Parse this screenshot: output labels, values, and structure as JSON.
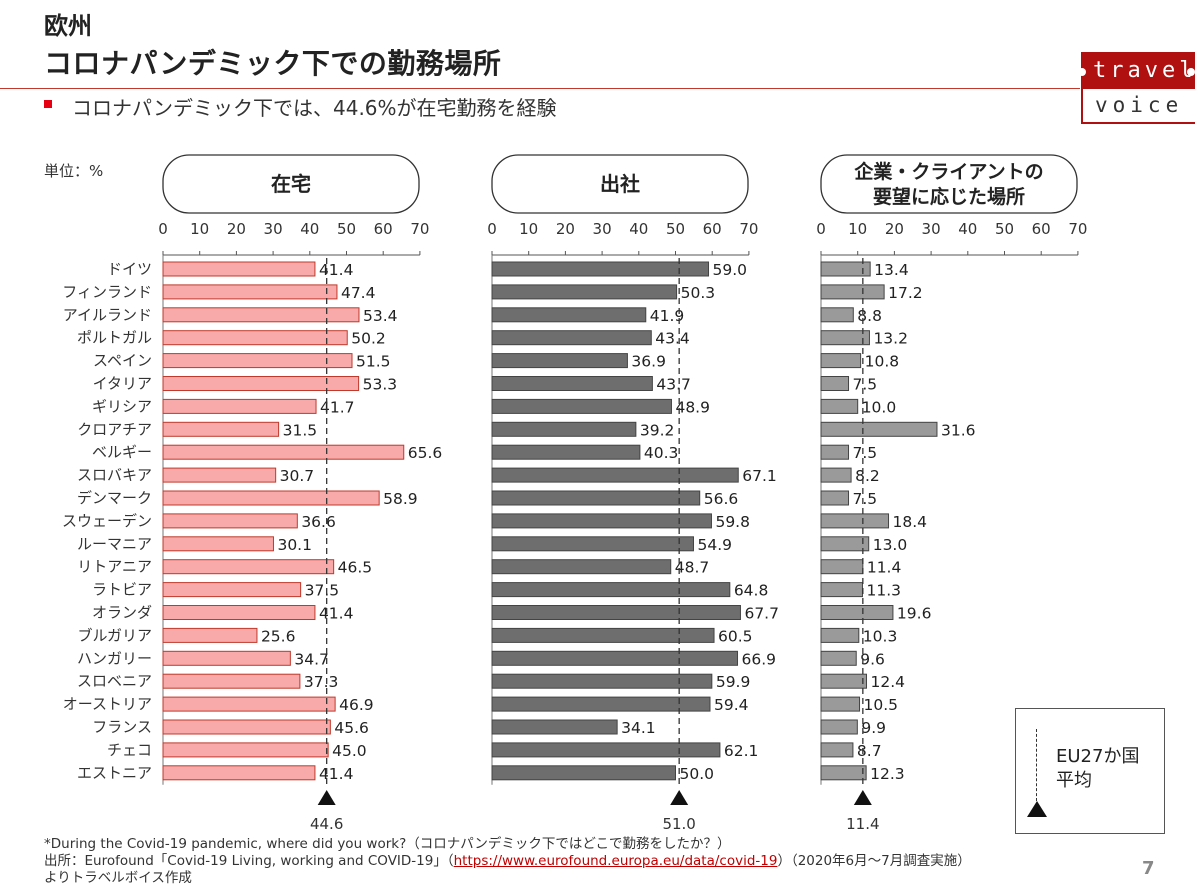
{
  "header": {
    "region": "欧州",
    "title": "コロナパンデミック下での勤務場所",
    "subtitle": "コロナパンデミック下では、44.6%が在宅勤務を経験"
  },
  "logo": {
    "line1": "travel",
    "line2": "voice"
  },
  "unit_label": "単位：%",
  "legend": {
    "label_line1": "EU27か国",
    "label_line2": "平均"
  },
  "colors": {
    "home": "#f8a9a9",
    "office": "#6e6e6e",
    "client": "#9a9a9a",
    "accent": "#e60012"
  },
  "chart_data": {
    "type": "bar",
    "orientation": "horizontal",
    "xlim": [
      0,
      70
    ],
    "ticks": [
      0,
      10,
      20,
      30,
      40,
      50,
      60,
      70
    ],
    "categories": [
      "ドイツ",
      "フィンランド",
      "アイルランド",
      "ポルトガル",
      "スペイン",
      "イタリア",
      "ギリシア",
      "クロアチア",
      "ベルギー",
      "スロバキア",
      "デンマーク",
      "スウェーデン",
      "ルーマニア",
      "リトアニア",
      "ラトビア",
      "オランダ",
      "ブルガリア",
      "ハンガリー",
      "スロベニア",
      "オーストリア",
      "フランス",
      "チェコ",
      "エストニア"
    ],
    "series": [
      {
        "name": "在宅",
        "average": 44.6,
        "average_label": "44.6",
        "values": [
          41.4,
          47.4,
          53.4,
          50.2,
          51.5,
          53.3,
          41.7,
          31.5,
          65.6,
          30.7,
          58.9,
          36.6,
          30.1,
          46.5,
          37.5,
          41.4,
          25.6,
          34.7,
          37.3,
          46.9,
          45.6,
          45.0,
          41.4
        ],
        "labels": [
          "41.4",
          "47.4",
          "53.4",
          "50.2",
          "51.5",
          "53.3",
          "41.7",
          "31.5",
          "65.6",
          "30.7",
          "58.9",
          "36.6",
          "30.1",
          "46.5",
          "37.5",
          "41.4",
          "25.6",
          "34.7",
          "37.3",
          "46.9",
          "45.6",
          "45.0",
          "41.4"
        ]
      },
      {
        "name": "出社",
        "average": 51.0,
        "average_label": "51.0",
        "values": [
          59.0,
          50.3,
          41.9,
          43.4,
          36.9,
          43.7,
          48.9,
          39.2,
          40.3,
          67.1,
          56.6,
          59.8,
          54.9,
          48.7,
          64.8,
          67.7,
          60.5,
          66.9,
          59.9,
          59.4,
          34.1,
          62.1,
          50.0
        ],
        "labels": [
          "59.0",
          "50.3",
          "41.9",
          "43.4",
          "36.9",
          "43.7",
          "48.9",
          "39.2",
          "40.3",
          "67.1",
          "56.6",
          "59.8",
          "54.9",
          "48.7",
          "64.8",
          "67.7",
          "60.5",
          "66.9",
          "59.9",
          "59.4",
          "34.1",
          "62.1",
          "50.0"
        ]
      },
      {
        "name_line1": "企業・クライアントの",
        "name_line2": "要望に応じた場所",
        "average": 11.4,
        "average_label": "11.4",
        "values": [
          13.4,
          17.2,
          8.8,
          13.2,
          10.8,
          7.5,
          10.0,
          31.6,
          7.5,
          8.2,
          7.5,
          18.4,
          13.0,
          11.4,
          11.3,
          19.6,
          10.3,
          9.6,
          12.4,
          10.5,
          9.9,
          8.7,
          12.3
        ],
        "labels": [
          "13.4",
          "17.2",
          "8.8",
          "13.2",
          "10.8",
          "7.5",
          "10.0",
          "31.6",
          "7.5",
          "8.2",
          "7.5",
          "18.4",
          "13.0",
          "11.4",
          "11.3",
          "19.6",
          "10.3",
          "9.6",
          "12.4",
          "10.5",
          "9.9",
          "8.7",
          "12.3"
        ]
      }
    ]
  },
  "footer": {
    "line1": "*During the Covid-19 pandemic, where did you work?（コロナパンデミック下ではどこで勤務をしたか？）",
    "line2_prefix": "出所：Eurofound「Covid-19 Living, working and COVID-19」（",
    "line2_link": "https://www.eurofound.europa.eu/data/covid-19",
    "line2_suffix": "）（2020年6月～7月調査実施）",
    "line3": "よりトラベルボイス作成"
  },
  "page_number": "7"
}
